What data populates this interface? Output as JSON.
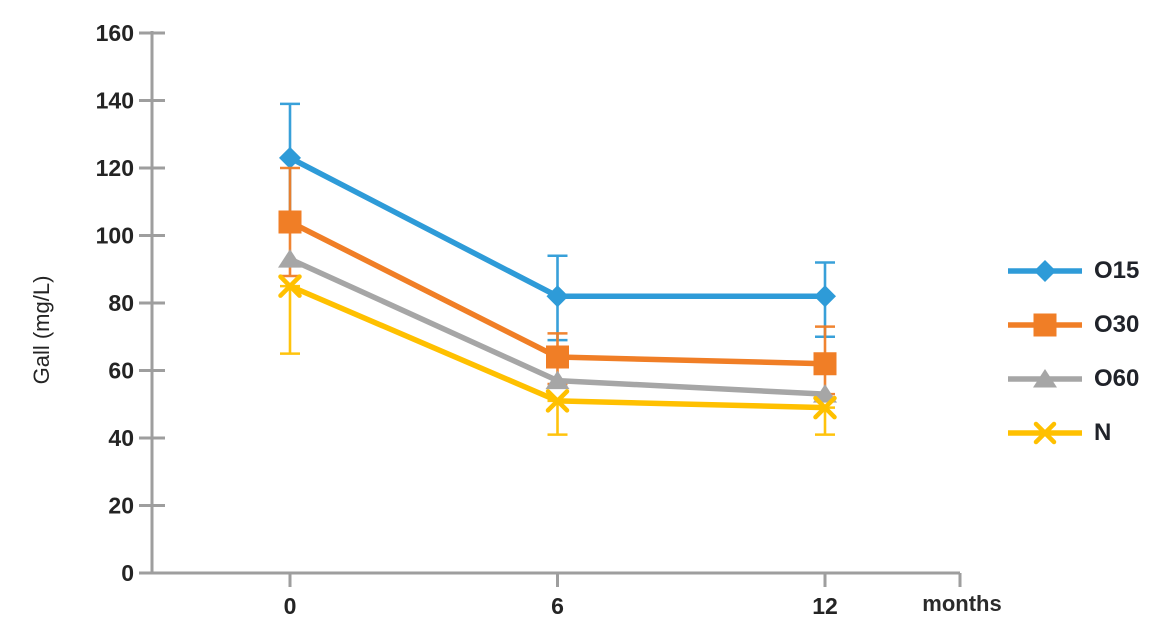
{
  "chart_data": {
    "type": "line",
    "title": "",
    "xlabel": "months",
    "ylabel": "Gall (mg/L)",
    "x_categories": [
      "0",
      "6",
      "12"
    ],
    "x_values": [
      0,
      6,
      12
    ],
    "ylim": [
      0,
      160
    ],
    "ytick_interval": 20,
    "ytick_labels": [
      "0",
      "20",
      "40",
      "60",
      "80",
      "100",
      "120",
      "140",
      "160"
    ],
    "grid": false,
    "legend_position": "right",
    "axis_color": "#9e9e9e",
    "text_color": "#242424",
    "series": [
      {
        "name": "O15",
        "color": "#2e9bd8",
        "marker": "diamond",
        "values": [
          123,
          82,
          82
        ],
        "error_low": [
          105,
          69,
          70
        ],
        "error_high": [
          139,
          94,
          92
        ]
      },
      {
        "name": "O30",
        "color": "#f07e26",
        "marker": "square",
        "values": [
          104,
          64,
          62
        ],
        "error_low": [
          88,
          56,
          53
        ],
        "error_high": [
          120,
          71,
          73
        ]
      },
      {
        "name": "O60",
        "color": "#a6a6a6",
        "marker": "triangle",
        "values": [
          93,
          57,
          53
        ],
        "error_low": null,
        "error_high": null
      },
      {
        "name": "N",
        "color": "#ffc000",
        "marker": "x",
        "values": [
          85,
          51,
          49
        ],
        "error_low": [
          65,
          41,
          41
        ],
        "error_high": [
          85,
          51,
          49
        ]
      }
    ]
  }
}
